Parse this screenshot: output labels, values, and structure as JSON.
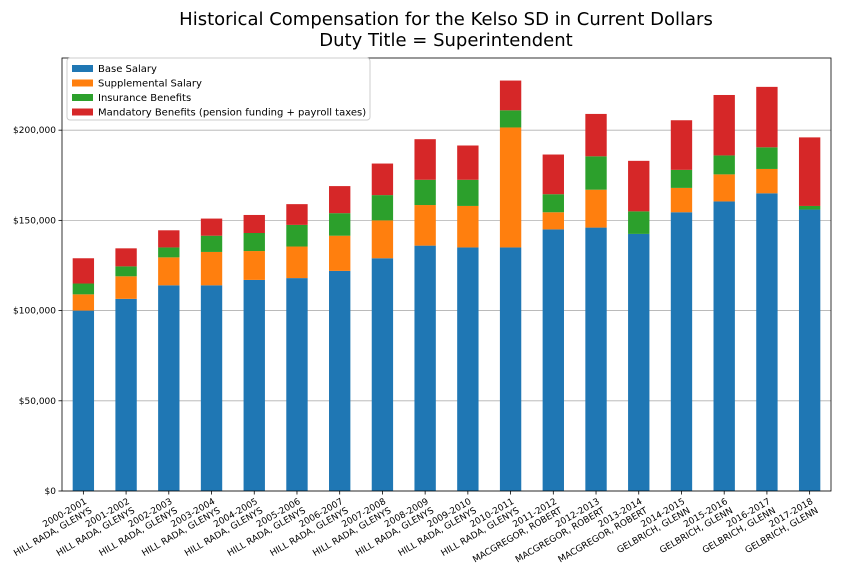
{
  "chart_data": {
    "type": "bar",
    "stacked": true,
    "title": [
      "Historical Compensation for the Kelso SD in Current Dollars",
      "Duty Title = Superintendent"
    ],
    "xlabel": "",
    "ylabel": "",
    "grid": true,
    "legend_position": "top-left",
    "ylim": [
      0,
      240000
    ],
    "yticks": [
      0,
      50000,
      100000,
      150000,
      200000
    ],
    "ytick_labels": [
      "$0",
      "$50,000",
      "$100,000",
      "$150,000",
      "$200,000"
    ],
    "categories": [
      [
        "2000-2001",
        "HILL RADA, GLENYS"
      ],
      [
        "2001-2002",
        "HILL RADA, GLENYS"
      ],
      [
        "2002-2003",
        "HILL RADA, GLENYS"
      ],
      [
        "2003-2004",
        "HILL RADA, GLENYS"
      ],
      [
        "2004-2005",
        "HILL RADA, GLENYS"
      ],
      [
        "2005-2006",
        "HILL RADA, GLENYS"
      ],
      [
        "2006-2007",
        "HILL RADA, GLENYS"
      ],
      [
        "2007-2008",
        "HILL RADA, GLENYS"
      ],
      [
        "2008-2009",
        "HILL RADA, GLENYS"
      ],
      [
        "2009-2010",
        "HILL RADA, GLENYS"
      ],
      [
        "2010-2011",
        "HILL RADA, GLENYS"
      ],
      [
        "2011-2012",
        "MACGREGOR, ROBERT"
      ],
      [
        "2012-2013",
        "MACGREGOR, ROBERT"
      ],
      [
        "2013-2014",
        "MACGREGOR, ROBERT"
      ],
      [
        "2014-2015",
        "GELBRICH, GLENN"
      ],
      [
        "2015-2016",
        "GELBRICH, GLENN"
      ],
      [
        "2016-2017",
        "GELBRICH, GLENN"
      ],
      [
        "2017-2018",
        "GELBRICH, GLENN"
      ]
    ],
    "series": [
      {
        "name": "Base Salary",
        "color": "#1f77b4",
        "values": [
          100000,
          106500,
          114000,
          114000,
          117000,
          118000,
          122000,
          129000,
          136000,
          135000,
          135000,
          145000,
          146000,
          142500,
          154500,
          160500,
          165000,
          156000
        ]
      },
      {
        "name": "Supplemental Salary",
        "color": "#ff7f0e",
        "values": [
          9000,
          12500,
          15500,
          18500,
          16000,
          17500,
          19500,
          21000,
          22500,
          23000,
          66500,
          9500,
          21000,
          0,
          13500,
          15000,
          13500,
          0
        ]
      },
      {
        "name": "Insurance Benefits",
        "color": "#2ca02c",
        "values": [
          6000,
          5500,
          5500,
          9000,
          10000,
          12000,
          12500,
          14000,
          14000,
          14500,
          9500,
          10000,
          18500,
          12500,
          10000,
          10500,
          12000,
          2000
        ]
      },
      {
        "name": "Mandatory Benefits (pension funding + payroll taxes)",
        "color": "#d62728",
        "values": [
          14000,
          10000,
          9500,
          9500,
          10000,
          11500,
          15000,
          17500,
          22500,
          19000,
          16500,
          22000,
          23500,
          28000,
          27500,
          33500,
          33500,
          38000
        ]
      }
    ]
  }
}
